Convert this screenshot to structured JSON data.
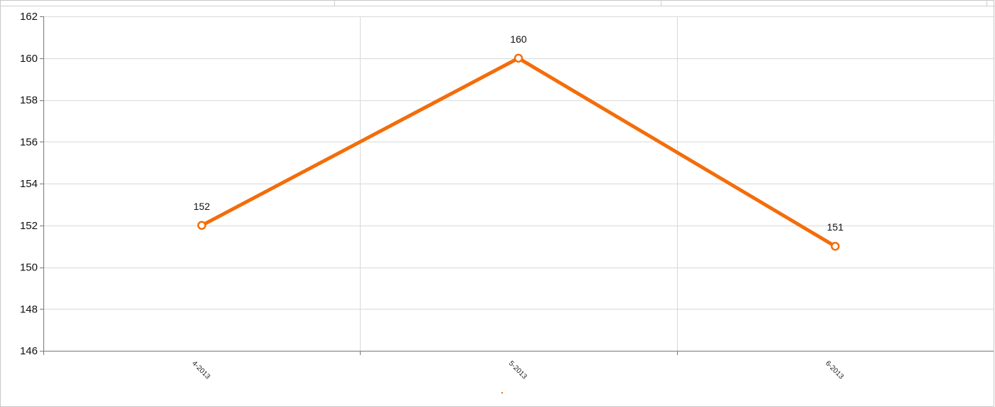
{
  "chart_data": {
    "type": "line",
    "title": "",
    "xlabel": "",
    "ylabel": "",
    "categories": [
      "4-2013",
      "5-2013",
      "6-2013"
    ],
    "series": [
      {
        "values": [
          152,
          160,
          151
        ],
        "color": "#f36d0a"
      }
    ],
    "ylim": [
      146,
      162
    ],
    "yticks": [
      146,
      148,
      150,
      152,
      154,
      156,
      158,
      160,
      162
    ],
    "data_labels": [
      "152",
      "160",
      "151"
    ],
    "grid": true,
    "legend": "bottom-center",
    "marker": "hollow-circle",
    "colors": {
      "line": "#f36d0a",
      "grid": "#d9d9d9",
      "axis": "#777777",
      "frame": "#c8c8c8"
    }
  }
}
